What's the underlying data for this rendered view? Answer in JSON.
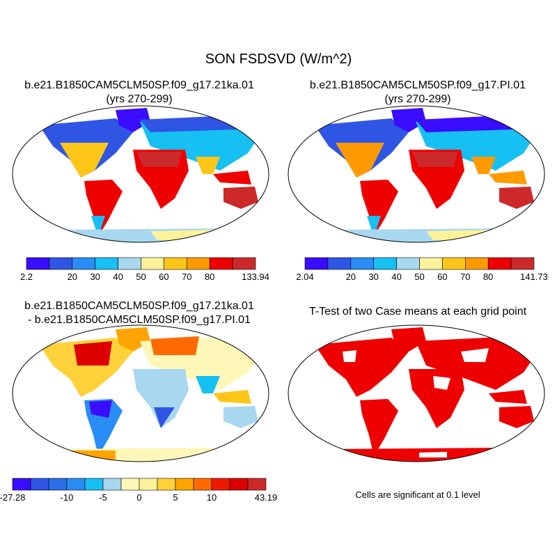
{
  "figure": {
    "title": "SON FSDSVD (W/m^2)"
  },
  "panels": [
    {
      "id": "case1",
      "title_line1": "b.e21.B1850CAM5CLM50SP.f09_g17.21ka.01",
      "title_line2": "(yrs 270-299)",
      "colors": [
        "#3a0dff",
        "#2f55e4",
        "#2a8df6",
        "#16c0f2",
        "#a8d8f0",
        "#fff29a",
        "#ffc61a",
        "#ff9b00",
        "#ee0000",
        "#cc2a2a"
      ],
      "tick_labels": [
        "2.2",
        "20",
        "30",
        "40",
        "50",
        "60",
        "70",
        "80",
        "133.94"
      ],
      "tick_positions": [
        0,
        2,
        3,
        4,
        5,
        6,
        7,
        8,
        10
      ]
    },
    {
      "id": "case2",
      "title_line1": "b.e21.B1850CAM5CLM50SP.f09_g17.PI.01",
      "title_line2": "(yrs 270-299)",
      "colors": [
        "#3a0dff",
        "#2f55e4",
        "#2a8df6",
        "#16c0f2",
        "#a8d8f0",
        "#fff29a",
        "#ffc61a",
        "#ff9b00",
        "#ee0000",
        "#cc2a2a"
      ],
      "tick_labels": [
        "2.04",
        "20",
        "30",
        "40",
        "50",
        "60",
        "70",
        "80",
        "141.73"
      ],
      "tick_positions": [
        0,
        2,
        3,
        4,
        5,
        6,
        7,
        8,
        10
      ]
    },
    {
      "id": "difference",
      "title_line1": "b.e21.B1850CAM5CLM50SP.f09_g17.21ka.01",
      "title_line2": "- b.e21.B1850CAM5CLM50SP.f09_g17.PI.01",
      "colors": [
        "#3a0dff",
        "#2f55e4",
        "#2a6ee8",
        "#2a8df6",
        "#16c0f2",
        "#a8d8f0",
        "#fff7b8",
        "#fff29a",
        "#ffd23a",
        "#ffa400",
        "#ff6a00",
        "#ee1a00",
        "#dd0000",
        "#cc2a2a"
      ],
      "tick_labels": [
        "-27.28",
        "-10",
        "-5",
        "0",
        "5",
        "10",
        "43.19"
      ],
      "tick_positions": [
        0,
        3,
        5,
        7,
        9,
        11,
        14
      ]
    },
    {
      "id": "ttest",
      "title_line1": "T-Test of two Case means at each grid point",
      "note": "Cells are significant at 0.1 level",
      "significant_color": "#ee0000"
    }
  ]
}
